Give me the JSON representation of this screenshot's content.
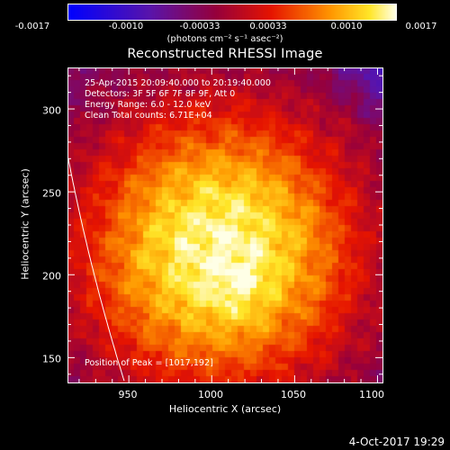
{
  "colorbar": {
    "ticks": [
      "-0.0017",
      "-0.0010",
      "-0.00033",
      "0.00033",
      "0.0010",
      "0.0017"
    ],
    "units_text": "(photons cm⁻² s⁻¹ asec⁻²)"
  },
  "title": "Reconstructed RHESSI Image",
  "annotations": {
    "time": "25-Apr-2015 20:09:40.000 to 20:19:40.000",
    "detectors": "Detectors: 3F 5F 6F 7F 8F 9F, Att 0",
    "energy": "Energy Range: 6.0 - 12.0 keV",
    "clean": "Clean     Total counts: 6.71E+04",
    "peak": "Position of Peak = [1017,192]"
  },
  "footer": "4-Oct-2017 19:29",
  "chart_data": {
    "type": "heatmap",
    "title": "Reconstructed RHESSI Image",
    "xlabel": "Heliocentric X (arcsec)",
    "ylabel": "Heliocentric Y (arcsec)",
    "xlim": [
      913,
      1103
    ],
    "ylim": [
      135,
      325
    ],
    "x_ticks": [
      950,
      1000,
      1050,
      1100
    ],
    "y_ticks": [
      150,
      200,
      250,
      300
    ],
    "colorbar_range": [
      -0.0017,
      0.0017
    ],
    "colorbar_ticks": [
      -0.0017,
      -0.001,
      -0.00033,
      0.00033,
      0.001,
      0.0017
    ],
    "colorbar_units": "(photons cm⁻² s⁻¹ asec⁻²)",
    "peak": [
      1017,
      192
    ],
    "source_center": [
      1005,
      215
    ],
    "colormap": "blue-purple-red-orange-yellow-white",
    "limb_color": "#ffffff"
  }
}
